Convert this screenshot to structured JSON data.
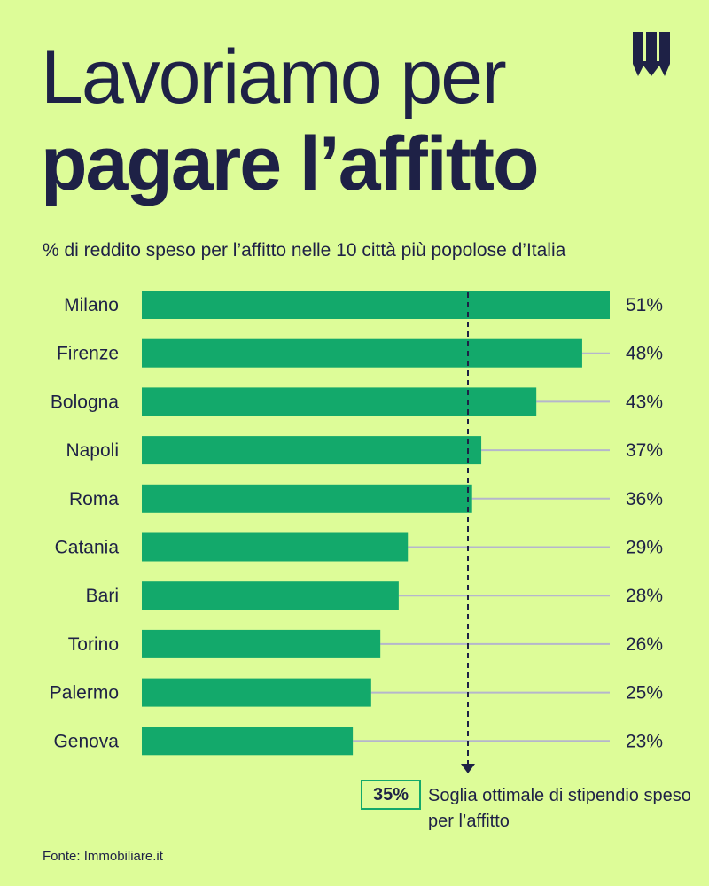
{
  "header": {
    "title_line1": "Lavoriamo per",
    "title_line2": "pagare l’affitto",
    "subtitle": "% di reddito speso per l’affitto nelle 10 città più popolose d’Italia"
  },
  "logo": {
    "icon": "w-logo-icon"
  },
  "chart_data": {
    "type": "bar",
    "orientation": "horizontal",
    "categories": [
      "Milano",
      "Firenze",
      "Bologna",
      "Napoli",
      "Roma",
      "Catania",
      "Bari",
      "Torino",
      "Palermo",
      "Genova"
    ],
    "values": [
      51,
      48,
      43,
      37,
      36,
      29,
      28,
      26,
      25,
      23
    ],
    "value_labels": [
      "51%",
      "48%",
      "43%",
      "37%",
      "36%",
      "29%",
      "28%",
      "26%",
      "25%",
      "23%"
    ],
    "xlim": [
      0,
      51
    ],
    "threshold": {
      "value": 35,
      "label": "35%",
      "text": "Soglia ottimale di stipendio speso per l’affitto"
    },
    "colors": {
      "bar": "#13a96b",
      "leader_line": "#b5b6cc",
      "text": "#1e2146",
      "threshold": "#1e2146"
    }
  },
  "footer": {
    "source": "Fonte: Immobiliare.it"
  },
  "colors": {
    "background": "#ddfc98",
    "text": "#1e2146",
    "accent": "#13a96b"
  }
}
